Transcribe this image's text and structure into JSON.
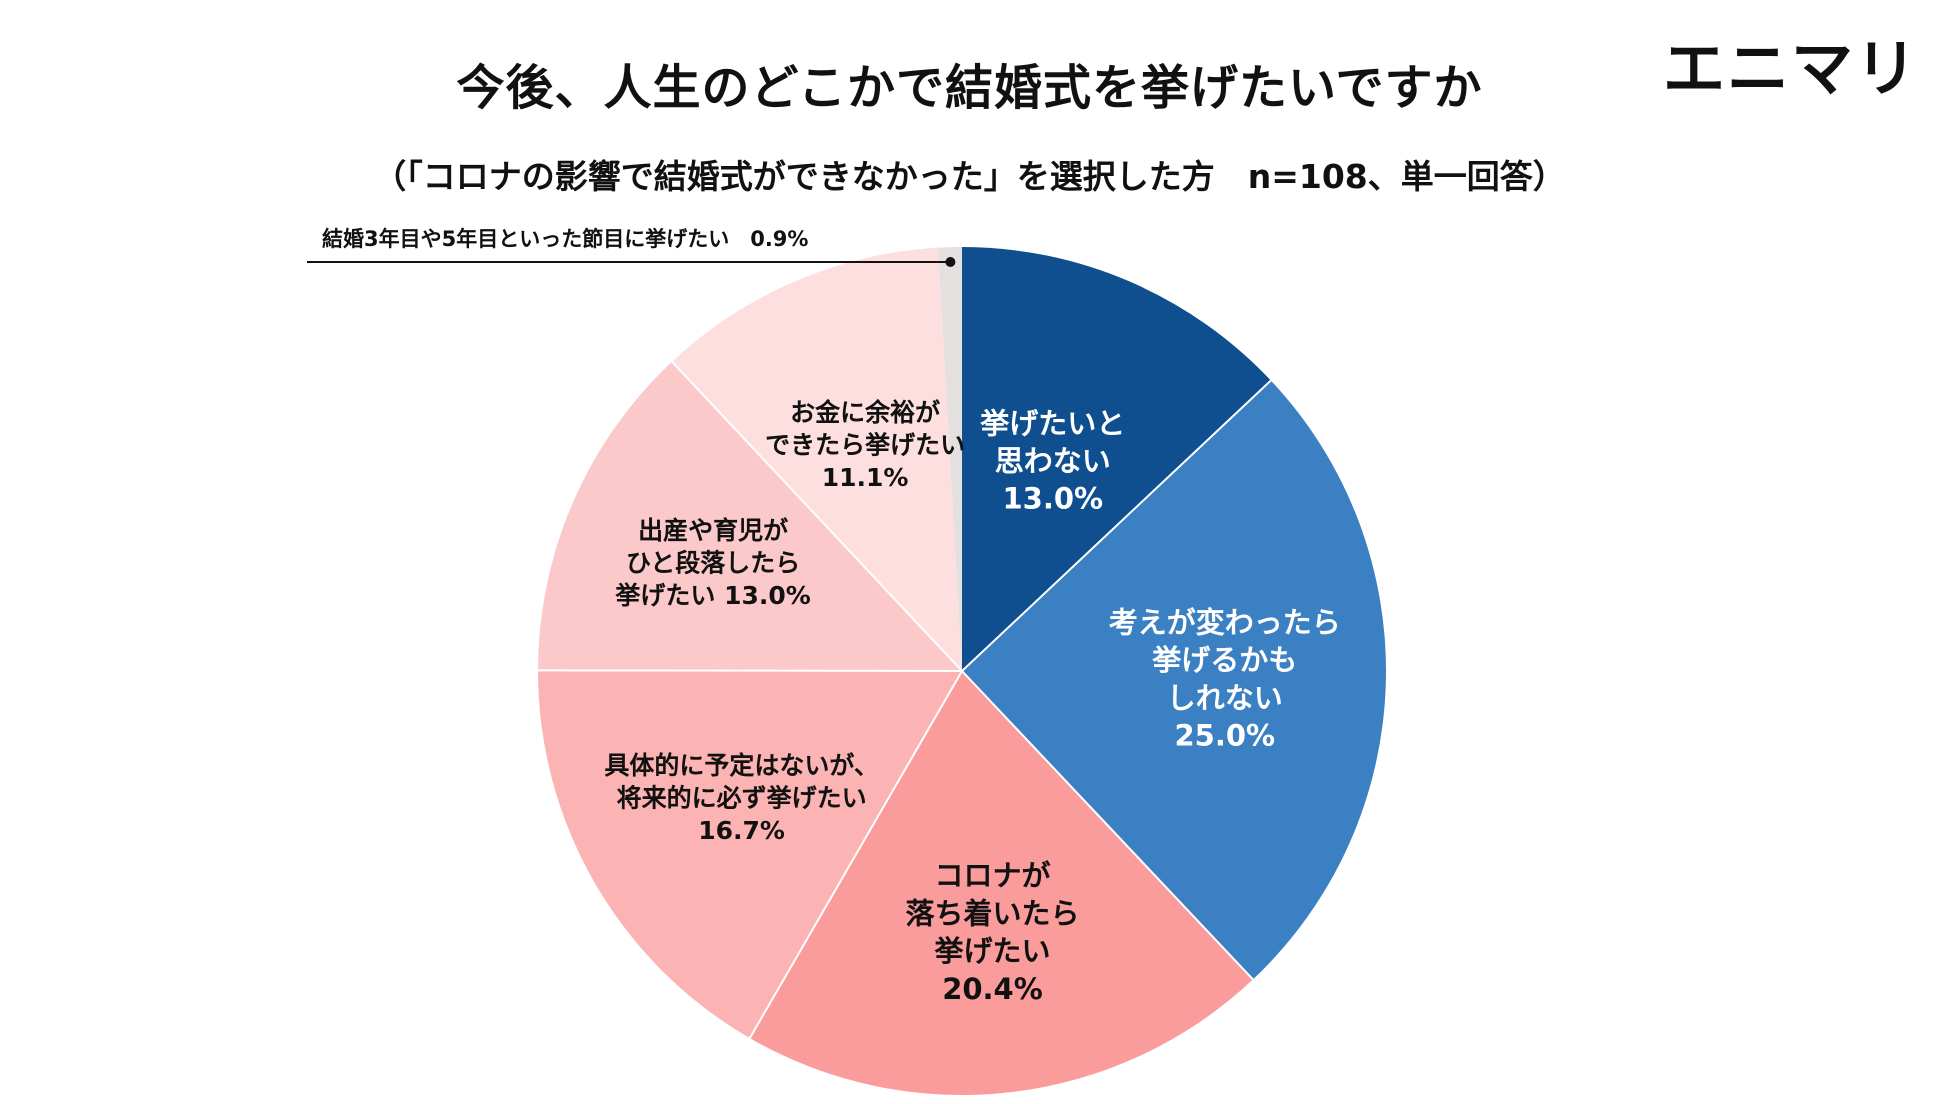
{
  "brand": {
    "logo_text": "エニマリ"
  },
  "chart_data": {
    "type": "pie",
    "title": "今後、人生のどこかで結婚式を挙げたいですか",
    "subtitle": "（「コロナの影響で結婚式ができなかった」を選択した方　n=108、単一回答）",
    "start": "12 o'clock",
    "direction": "clockwise",
    "slices": [
      {
        "lines": [
          "挙げたいと",
          "思わない",
          "13.0%"
        ],
        "value": 13.0,
        "color": "#0f4e8f",
        "text_color": "#ffffff"
      },
      {
        "lines": [
          "考えが変わったら",
          "挙げるかも",
          "しれない",
          "25.0%"
        ],
        "value": 25.0,
        "color": "#3c80c4",
        "text_color": "#ffffff"
      },
      {
        "lines": [
          "コロナが",
          "落ち着いたら",
          "挙げたい",
          "20.4%"
        ],
        "value": 20.4,
        "color": "#fb9c9c",
        "text_color": "#111111"
      },
      {
        "lines": [
          "具体的に予定はないが、",
          "将来的に必ず挙げたい",
          "16.7%"
        ],
        "value": 16.7,
        "color": "#fbb3b3",
        "text_color": "#111111"
      },
      {
        "lines": [
          "出産や育児が",
          "ひと段落したら",
          "挙げたい 13.0%"
        ],
        "value": 13.0,
        "color": "#fbc9c9",
        "text_color": "#111111"
      },
      {
        "lines": [
          "お金に余裕が",
          "できたら挙げたい",
          "11.1%"
        ],
        "value": 11.1,
        "color": "#fddfdf",
        "text_color": "#111111"
      },
      {
        "lines": [
          "結婚3年目や5年目といった節目に挙げたい　0.9%"
        ],
        "value": 0.9,
        "color": "#e4e0e0",
        "text_color": "#111111",
        "callout": true
      }
    ]
  }
}
